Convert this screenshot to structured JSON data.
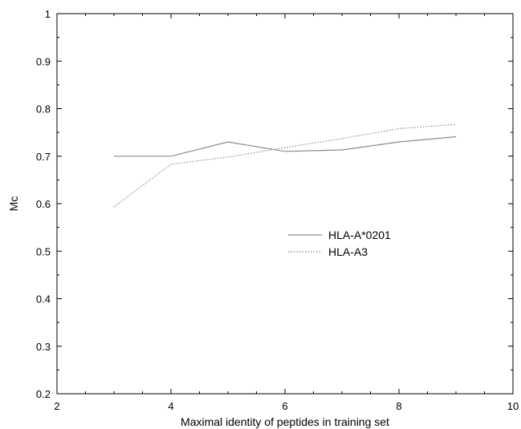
{
  "chart_data": {
    "type": "line",
    "xlabel": "Maximal identity of peptides in training set",
    "ylabel": "Mc",
    "xlim": [
      2,
      10
    ],
    "ylim": [
      0.2,
      1
    ],
    "x_ticks": [
      "2",
      "4",
      "6",
      "8",
      "10"
    ],
    "y_ticks": [
      "0.2",
      "0.3",
      "0.4",
      "0.5",
      "0.6",
      "0.7",
      "0.8",
      "0.9",
      "1"
    ],
    "grid": false,
    "legend_position": "center-right",
    "series": [
      {
        "name": "HLA-A*0201",
        "style": "solid",
        "color": "#8c8c8c",
        "x": [
          3,
          4,
          5,
          6,
          7,
          8,
          9
        ],
        "y": [
          0.7,
          0.7,
          0.73,
          0.71,
          0.713,
          0.73,
          0.741
        ]
      },
      {
        "name": "HLA-A3",
        "style": "dotted",
        "color": "#8c8c8c",
        "x": [
          3,
          4,
          5,
          6,
          7,
          8,
          9
        ],
        "y": [
          0.593,
          0.683,
          0.698,
          0.718,
          0.737,
          0.758,
          0.767
        ]
      }
    ]
  }
}
